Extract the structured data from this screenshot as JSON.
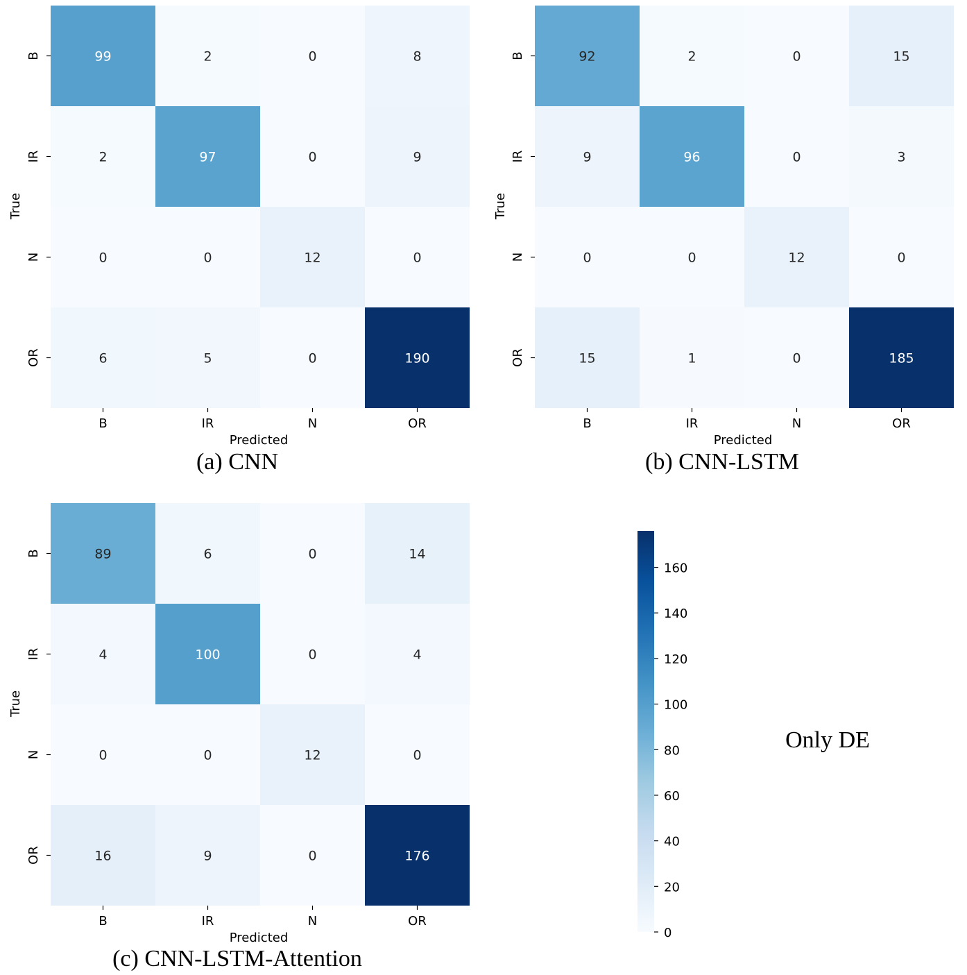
{
  "chart_data": [
    {
      "type": "heatmap",
      "caption": "(a) CNN",
      "xlabel": "Predicted",
      "ylabel": "True",
      "x_categories": [
        "B",
        "IR",
        "N",
        "OR"
      ],
      "y_categories": [
        "B",
        "IR",
        "N",
        "OR"
      ],
      "matrix": [
        [
          99,
          2,
          0,
          8
        ],
        [
          2,
          97,
          0,
          9
        ],
        [
          0,
          0,
          12,
          0
        ],
        [
          6,
          5,
          0,
          190
        ]
      ]
    },
    {
      "type": "heatmap",
      "caption": "(b) CNN-LSTM",
      "xlabel": "Predicted",
      "ylabel": "True",
      "x_categories": [
        "B",
        "IR",
        "N",
        "OR"
      ],
      "y_categories": [
        "B",
        "IR",
        "N",
        "OR"
      ],
      "matrix": [
        [
          92,
          2,
          0,
          15
        ],
        [
          9,
          96,
          0,
          3
        ],
        [
          0,
          0,
          12,
          0
        ],
        [
          15,
          1,
          0,
          185
        ]
      ]
    },
    {
      "type": "heatmap",
      "caption": "(c)  CNN-LSTM-Attention",
      "xlabel": "Predicted",
      "ylabel": "True",
      "x_categories": [
        "B",
        "IR",
        "N",
        "OR"
      ],
      "y_categories": [
        "B",
        "IR",
        "N",
        "OR"
      ],
      "matrix": [
        [
          89,
          6,
          0,
          14
        ],
        [
          4,
          100,
          0,
          4
        ],
        [
          0,
          0,
          12,
          0
        ],
        [
          16,
          9,
          0,
          176
        ]
      ]
    }
  ],
  "colorbar": {
    "range": [
      0,
      176
    ],
    "ticks": [
      0,
      20,
      40,
      60,
      80,
      100,
      120,
      140,
      160
    ],
    "colormap": "Blues"
  },
  "side_note": "Only DE",
  "colors": {
    "light_text": "#ffffff",
    "dark_text": "#262626"
  }
}
